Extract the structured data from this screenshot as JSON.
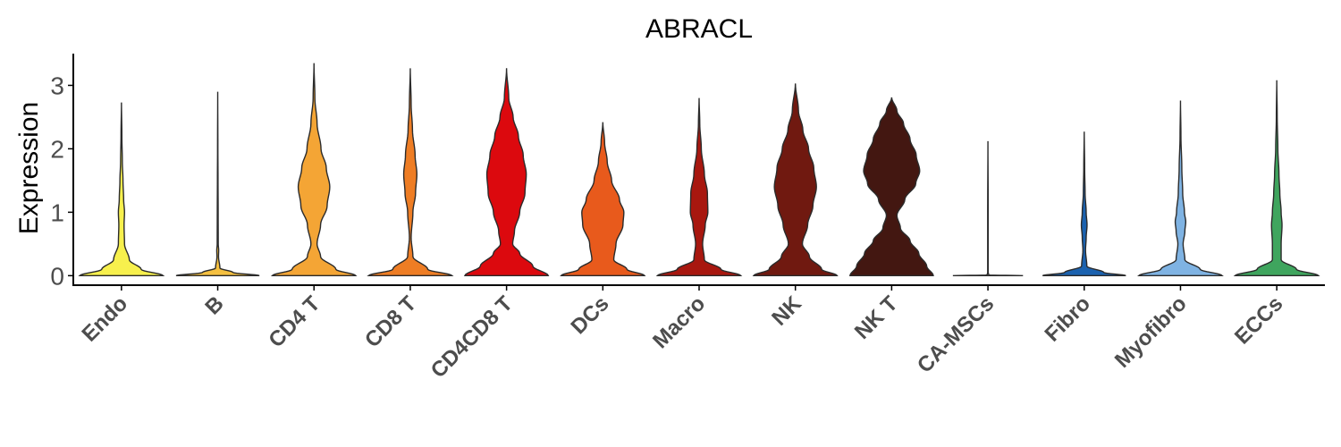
{
  "chart_data": {
    "type": "violin",
    "title": "ABRACL",
    "xlabel": "",
    "ylabel": "Expression",
    "ylim": [
      -0.15,
      3.5
    ],
    "yticks": [
      0,
      1,
      2,
      3
    ],
    "grid": false,
    "legend": "none",
    "categories": [
      "Endo",
      "B",
      "CD4 T",
      "CD8 T",
      "CD4CD8 T",
      "DCs",
      "Macro",
      "NK",
      "NK T",
      "CA-MSCs",
      "Fibro",
      "Myofibro",
      "ECCs"
    ],
    "series": [
      {
        "category": "Endo",
        "color": "#F7F04D",
        "max": 2.73,
        "profile": [
          [
            0,
            0.95
          ],
          [
            0.1,
            0.45
          ],
          [
            0.25,
            0.18
          ],
          [
            0.5,
            0.07
          ],
          [
            0.8,
            0.06
          ],
          [
            1.0,
            0.07
          ],
          [
            1.2,
            0.05
          ],
          [
            1.5,
            0.035
          ],
          [
            1.8,
            0.02
          ],
          [
            2.2,
            0.01
          ],
          [
            2.73,
            0
          ]
        ]
      },
      {
        "category": "B",
        "color": "#F5C040",
        "max": 2.9,
        "profile": [
          [
            0,
            0.95
          ],
          [
            0.05,
            0.35
          ],
          [
            0.12,
            0.05
          ],
          [
            0.3,
            0.018
          ],
          [
            0.4,
            0.022
          ],
          [
            0.5,
            0.012
          ],
          [
            1.0,
            0.01
          ],
          [
            1.5,
            0.007
          ],
          [
            2.0,
            0.004
          ],
          [
            2.9,
            0
          ]
        ]
      },
      {
        "category": "CD4 T",
        "color": "#F4A535",
        "max": 3.35,
        "profile": [
          [
            0,
            0.95
          ],
          [
            0.1,
            0.5
          ],
          [
            0.3,
            0.15
          ],
          [
            0.5,
            0.07
          ],
          [
            0.8,
            0.15
          ],
          [
            1.1,
            0.3
          ],
          [
            1.4,
            0.36
          ],
          [
            1.7,
            0.28
          ],
          [
            2.0,
            0.16
          ],
          [
            2.4,
            0.07
          ],
          [
            2.8,
            0.02
          ],
          [
            3.35,
            0
          ]
        ]
      },
      {
        "category": "CD8 T",
        "color": "#EE7D24",
        "max": 3.27,
        "profile": [
          [
            0,
            0.95
          ],
          [
            0.1,
            0.4
          ],
          [
            0.3,
            0.06
          ],
          [
            0.6,
            0.02
          ],
          [
            1.0,
            0.06
          ],
          [
            1.3,
            0.12
          ],
          [
            1.6,
            0.15
          ],
          [
            1.9,
            0.11
          ],
          [
            2.3,
            0.05
          ],
          [
            2.7,
            0.02
          ],
          [
            3.27,
            0
          ]
        ]
      },
      {
        "category": "CD4CD8 T",
        "color": "#DC090E",
        "max": 3.27,
        "profile": [
          [
            0,
            0.95
          ],
          [
            0.15,
            0.6
          ],
          [
            0.35,
            0.3
          ],
          [
            0.5,
            0.14
          ],
          [
            0.7,
            0.18
          ],
          [
            1.0,
            0.3
          ],
          [
            1.3,
            0.42
          ],
          [
            1.6,
            0.45
          ],
          [
            1.9,
            0.38
          ],
          [
            2.2,
            0.27
          ],
          [
            2.5,
            0.15
          ],
          [
            2.8,
            0.05
          ],
          [
            3.27,
            0
          ]
        ]
      },
      {
        "category": "DCs",
        "color": "#E85A1C",
        "max": 2.42,
        "profile": [
          [
            0,
            0.95
          ],
          [
            0.1,
            0.55
          ],
          [
            0.25,
            0.25
          ],
          [
            0.5,
            0.3
          ],
          [
            0.8,
            0.46
          ],
          [
            1.0,
            0.48
          ],
          [
            1.2,
            0.38
          ],
          [
            1.5,
            0.2
          ],
          [
            1.8,
            0.1
          ],
          [
            2.1,
            0.04
          ],
          [
            2.42,
            0
          ]
        ]
      },
      {
        "category": "Macro",
        "color": "#A8170F",
        "max": 2.8,
        "profile": [
          [
            0,
            0.95
          ],
          [
            0.1,
            0.5
          ],
          [
            0.25,
            0.12
          ],
          [
            0.5,
            0.08
          ],
          [
            0.8,
            0.14
          ],
          [
            1.0,
            0.2
          ],
          [
            1.3,
            0.19
          ],
          [
            1.6,
            0.12
          ],
          [
            2.0,
            0.05
          ],
          [
            2.4,
            0.015
          ],
          [
            2.8,
            0
          ]
        ]
      },
      {
        "category": "NK",
        "color": "#701910",
        "max": 3.03,
        "profile": [
          [
            0,
            0.95
          ],
          [
            0.1,
            0.6
          ],
          [
            0.3,
            0.32
          ],
          [
            0.5,
            0.16
          ],
          [
            0.8,
            0.28
          ],
          [
            1.1,
            0.4
          ],
          [
            1.4,
            0.48
          ],
          [
            1.7,
            0.42
          ],
          [
            2.0,
            0.3
          ],
          [
            2.3,
            0.17
          ],
          [
            2.6,
            0.07
          ],
          [
            3.03,
            0
          ]
        ]
      },
      {
        "category": "NK T",
        "color": "#431711",
        "max": 2.81,
        "profile": [
          [
            0,
            0.95
          ],
          [
            0.15,
            0.8
          ],
          [
            0.35,
            0.62
          ],
          [
            0.55,
            0.42
          ],
          [
            0.75,
            0.2
          ],
          [
            0.95,
            0.12
          ],
          [
            1.2,
            0.3
          ],
          [
            1.45,
            0.55
          ],
          [
            1.65,
            0.64
          ],
          [
            1.9,
            0.56
          ],
          [
            2.15,
            0.42
          ],
          [
            2.4,
            0.27
          ],
          [
            2.6,
            0.12
          ],
          [
            2.81,
            0
          ]
        ]
      },
      {
        "category": "CA-MSCs",
        "color": "#9a9a9a",
        "max": 2.12,
        "profile": [
          [
            0,
            0.8
          ],
          [
            0.01,
            0.02
          ],
          [
            0.05,
            0.006
          ],
          [
            1.0,
            0.006
          ],
          [
            2.12,
            0
          ]
        ]
      },
      {
        "category": "Fibro",
        "color": "#1B62AF",
        "max": 2.27,
        "profile": [
          [
            0,
            0.95
          ],
          [
            0.05,
            0.45
          ],
          [
            0.15,
            0.06
          ],
          [
            0.4,
            0.03
          ],
          [
            0.6,
            0.045
          ],
          [
            0.8,
            0.065
          ],
          [
            1.0,
            0.045
          ],
          [
            1.3,
            0.02
          ],
          [
            1.7,
            0.01
          ],
          [
            2.27,
            0
          ]
        ]
      },
      {
        "category": "Myofibro",
        "color": "#7FB3E3",
        "max": 2.76,
        "profile": [
          [
            0,
            0.95
          ],
          [
            0.1,
            0.45
          ],
          [
            0.25,
            0.1
          ],
          [
            0.5,
            0.06
          ],
          [
            0.7,
            0.1
          ],
          [
            0.85,
            0.12
          ],
          [
            1.0,
            0.09
          ],
          [
            1.3,
            0.05
          ],
          [
            1.7,
            0.03
          ],
          [
            2.2,
            0.01
          ],
          [
            2.76,
            0
          ]
        ]
      },
      {
        "category": "ECCs",
        "color": "#3FA55E",
        "max": 3.08,
        "profile": [
          [
            0,
            0.95
          ],
          [
            0.1,
            0.45
          ],
          [
            0.25,
            0.1
          ],
          [
            0.5,
            0.1
          ],
          [
            0.8,
            0.12
          ],
          [
            1.0,
            0.1
          ],
          [
            1.3,
            0.07
          ],
          [
            1.6,
            0.05
          ],
          [
            2.0,
            0.025
          ],
          [
            2.5,
            0.01
          ],
          [
            3.08,
            0
          ]
        ]
      }
    ]
  }
}
